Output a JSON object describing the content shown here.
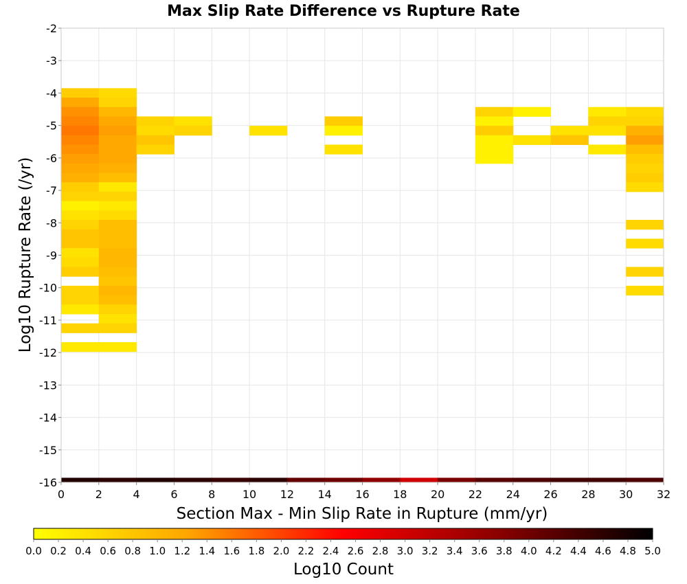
{
  "chart_data": {
    "type": "heatmap",
    "title": "Max Slip Rate Difference vs Rupture Rate",
    "xlabel": "Section Max - Min Slip Rate in Rupture (mm/yr)",
    "ylabel": "Log10 Rupture Rate (/yr)",
    "colorbar_label": "Log10 Count",
    "xlim": [
      0,
      32
    ],
    "ylim": [
      -16,
      -2
    ],
    "x_ticks": [
      "0",
      "2",
      "4",
      "6",
      "8",
      "10",
      "12",
      "14",
      "16",
      "18",
      "20",
      "22",
      "24",
      "26",
      "28",
      "30",
      "32"
    ],
    "y_ticks": [
      "-2",
      "-3",
      "-4",
      "-5",
      "-6",
      "-7",
      "-8",
      "-9",
      "-10",
      "-11",
      "-12",
      "-13",
      "-14",
      "-15",
      "-16"
    ],
    "colorbar_range": [
      0.0,
      5.0
    ],
    "colorbar_ticks": [
      "0.0",
      "0.2",
      "0.4",
      "0.6",
      "0.8",
      "1.0",
      "1.2",
      "1.4",
      "1.6",
      "1.8",
      "2.0",
      "2.2",
      "2.4",
      "2.6",
      "2.8",
      "3.0",
      "3.2",
      "3.4",
      "3.6",
      "3.8",
      "4.0",
      "4.2",
      "4.4",
      "4.6",
      "4.8",
      "5.0"
    ],
    "colormap": [
      "#ffff00",
      "#ffa500",
      "#ff0000",
      "#8b0000",
      "#000000"
    ],
    "grid": true,
    "cell_width": 2,
    "cell_height": 0.29,
    "cells": [
      {
        "x": 0,
        "y": -3.85,
        "v": 0.7
      },
      {
        "x": 0,
        "y": -4.14,
        "v": 1.2
      },
      {
        "x": 0,
        "y": -4.43,
        "v": 1.4
      },
      {
        "x": 0,
        "y": -4.72,
        "v": 1.5
      },
      {
        "x": 0,
        "y": -5.01,
        "v": 1.6
      },
      {
        "x": 0,
        "y": -5.3,
        "v": 1.5
      },
      {
        "x": 0,
        "y": -5.59,
        "v": 1.4
      },
      {
        "x": 0,
        "y": -5.88,
        "v": 1.3
      },
      {
        "x": 0,
        "y": -6.17,
        "v": 1.2
      },
      {
        "x": 0,
        "y": -6.46,
        "v": 1.1
      },
      {
        "x": 0,
        "y": -6.75,
        "v": 0.7
      },
      {
        "x": 0,
        "y": -7.04,
        "v": 0.6
      },
      {
        "x": 0,
        "y": -7.33,
        "v": 0.2
      },
      {
        "x": 0,
        "y": -7.62,
        "v": 0.4
      },
      {
        "x": 0,
        "y": -7.91,
        "v": 0.6
      },
      {
        "x": 0,
        "y": -8.2,
        "v": 0.8
      },
      {
        "x": 0,
        "y": -8.49,
        "v": 0.8
      },
      {
        "x": 0,
        "y": -8.78,
        "v": 0.4
      },
      {
        "x": 0,
        "y": -9.07,
        "v": 0.5
      },
      {
        "x": 0,
        "y": -9.36,
        "v": 0.7
      },
      {
        "x": 0,
        "y": -9.94,
        "v": 0.6
      },
      {
        "x": 0,
        "y": -10.23,
        "v": 0.6
      },
      {
        "x": 0,
        "y": -10.52,
        "v": 0.3
      },
      {
        "x": 0,
        "y": -11.1,
        "v": 0.6
      },
      {
        "x": 0,
        "y": -11.68,
        "v": 0.3
      },
      {
        "x": 2,
        "y": -3.85,
        "v": 0.5
      },
      {
        "x": 2,
        "y": -4.14,
        "v": 0.6
      },
      {
        "x": 2,
        "y": -4.43,
        "v": 1.0
      },
      {
        "x": 2,
        "y": -4.72,
        "v": 1.2
      },
      {
        "x": 2,
        "y": -5.01,
        "v": 1.3
      },
      {
        "x": 2,
        "y": -5.3,
        "v": 1.2
      },
      {
        "x": 2,
        "y": -5.59,
        "v": 1.2
      },
      {
        "x": 2,
        "y": -5.88,
        "v": 1.2
      },
      {
        "x": 2,
        "y": -6.17,
        "v": 1.1
      },
      {
        "x": 2,
        "y": -6.46,
        "v": 0.9
      },
      {
        "x": 2,
        "y": -6.75,
        "v": 0.3
      },
      {
        "x": 2,
        "y": -7.04,
        "v": 0.6
      },
      {
        "x": 2,
        "y": -7.33,
        "v": 0.3
      },
      {
        "x": 2,
        "y": -7.62,
        "v": 0.5
      },
      {
        "x": 2,
        "y": -7.91,
        "v": 0.9
      },
      {
        "x": 2,
        "y": -8.2,
        "v": 0.9
      },
      {
        "x": 2,
        "y": -8.49,
        "v": 0.9
      },
      {
        "x": 2,
        "y": -8.78,
        "v": 1.0
      },
      {
        "x": 2,
        "y": -9.07,
        "v": 1.0
      },
      {
        "x": 2,
        "y": -9.36,
        "v": 0.9
      },
      {
        "x": 2,
        "y": -9.65,
        "v": 0.8
      },
      {
        "x": 2,
        "y": -9.94,
        "v": 1.0
      },
      {
        "x": 2,
        "y": -10.23,
        "v": 0.9
      },
      {
        "x": 2,
        "y": -10.52,
        "v": 0.6
      },
      {
        "x": 2,
        "y": -10.81,
        "v": 0.4
      },
      {
        "x": 2,
        "y": -11.1,
        "v": 0.6
      },
      {
        "x": 2,
        "y": -11.68,
        "v": 0.3
      },
      {
        "x": 4,
        "y": -4.72,
        "v": 0.6
      },
      {
        "x": 4,
        "y": -5.01,
        "v": 0.5
      },
      {
        "x": 4,
        "y": -5.3,
        "v": 0.8
      },
      {
        "x": 4,
        "y": -5.59,
        "v": 0.6
      },
      {
        "x": 6,
        "y": -4.72,
        "v": 0.4
      },
      {
        "x": 6,
        "y": -5.01,
        "v": 0.6
      },
      {
        "x": 10,
        "y": -5.01,
        "v": 0.4
      },
      {
        "x": 14,
        "y": -4.72,
        "v": 0.7
      },
      {
        "x": 14,
        "y": -5.01,
        "v": 0.2
      },
      {
        "x": 14,
        "y": -5.59,
        "v": 0.4
      },
      {
        "x": 22,
        "y": -4.43,
        "v": 0.6
      },
      {
        "x": 22,
        "y": -4.72,
        "v": 0.2
      },
      {
        "x": 22,
        "y": -5.01,
        "v": 0.7
      },
      {
        "x": 22,
        "y": -5.3,
        "v": 0.2
      },
      {
        "x": 22,
        "y": -5.59,
        "v": 0.2
      },
      {
        "x": 22,
        "y": -5.88,
        "v": 0.2
      },
      {
        "x": 24,
        "y": -4.43,
        "v": 0.2
      },
      {
        "x": 24,
        "y": -5.3,
        "v": 0.4
      },
      {
        "x": 26,
        "y": -5.01,
        "v": 0.4
      },
      {
        "x": 26,
        "y": -5.3,
        "v": 0.8
      },
      {
        "x": 28,
        "y": -4.43,
        "v": 0.3
      },
      {
        "x": 28,
        "y": -4.72,
        "v": 0.6
      },
      {
        "x": 28,
        "y": -5.01,
        "v": 0.4
      },
      {
        "x": 28,
        "y": -5.59,
        "v": 0.3
      },
      {
        "x": 30,
        "y": -4.43,
        "v": 0.5
      },
      {
        "x": 30,
        "y": -4.72,
        "v": 0.6
      },
      {
        "x": 30,
        "y": -5.01,
        "v": 1.1
      },
      {
        "x": 30,
        "y": -5.3,
        "v": 1.3
      },
      {
        "x": 30,
        "y": -5.59,
        "v": 0.9
      },
      {
        "x": 30,
        "y": -5.88,
        "v": 0.7
      },
      {
        "x": 30,
        "y": -6.17,
        "v": 0.6
      },
      {
        "x": 30,
        "y": -6.46,
        "v": 0.7
      },
      {
        "x": 30,
        "y": -6.75,
        "v": 0.5
      },
      {
        "x": 30,
        "y": -7.91,
        "v": 0.6
      },
      {
        "x": 30,
        "y": -8.49,
        "v": 0.5
      },
      {
        "x": 30,
        "y": -9.36,
        "v": 0.6
      },
      {
        "x": 30,
        "y": -9.94,
        "v": 0.5
      }
    ],
    "bottom_row": {
      "y_top": -15.86,
      "y_bottom": -16,
      "cells": [
        {
          "x": 0,
          "v": 4.7
        },
        {
          "x": 2,
          "v": 4.6
        },
        {
          "x": 4,
          "v": 4.7
        },
        {
          "x": 6,
          "v": 4.6
        },
        {
          "x": 8,
          "v": 4.5
        },
        {
          "x": 10,
          "v": 4.6
        },
        {
          "x": 12,
          "v": 4.1
        },
        {
          "x": 14,
          "v": 4.0
        },
        {
          "x": 16,
          "v": 3.7
        },
        {
          "x": 18,
          "v": 3.0
        },
        {
          "x": 20,
          "v": 3.9
        },
        {
          "x": 22,
          "v": 4.2
        },
        {
          "x": 24,
          "v": 4.3
        },
        {
          "x": 26,
          "v": 4.4
        },
        {
          "x": 28,
          "v": 4.4
        },
        {
          "x": 30,
          "v": 4.3
        }
      ]
    }
  }
}
